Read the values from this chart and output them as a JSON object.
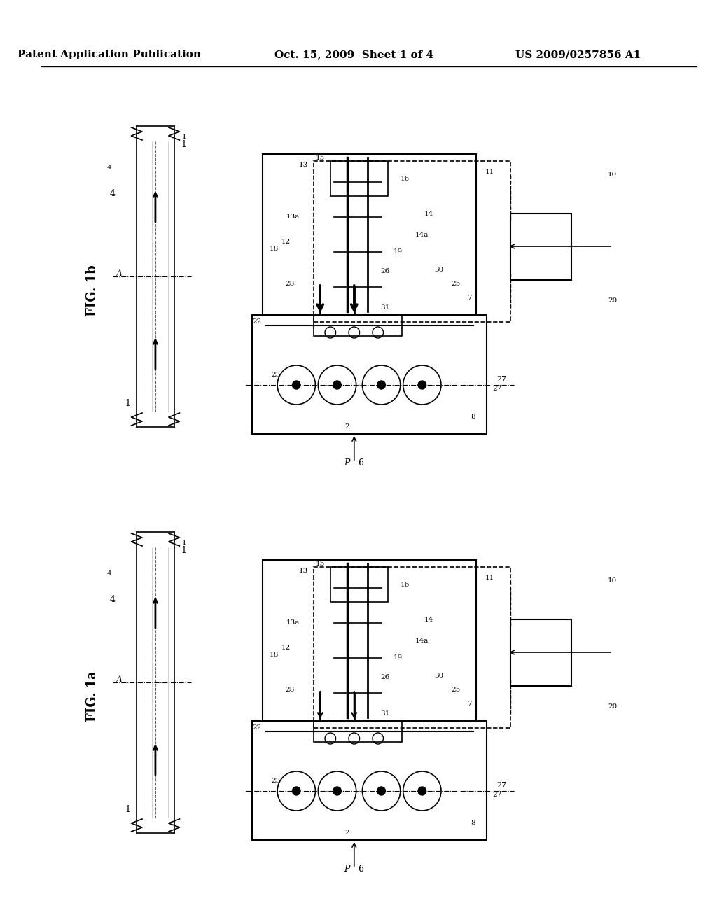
{
  "bg_color": "#ffffff",
  "header_left": "Patent Application Publication",
  "header_center": "Oct. 15, 2009  Sheet 1 of 4",
  "header_right": "US 2009/0257856 A1",
  "fig1b_label": "FIG. 1b",
  "fig1a_label": "FIG. 1a",
  "header_font_size": 11,
  "label_font_size": 13
}
